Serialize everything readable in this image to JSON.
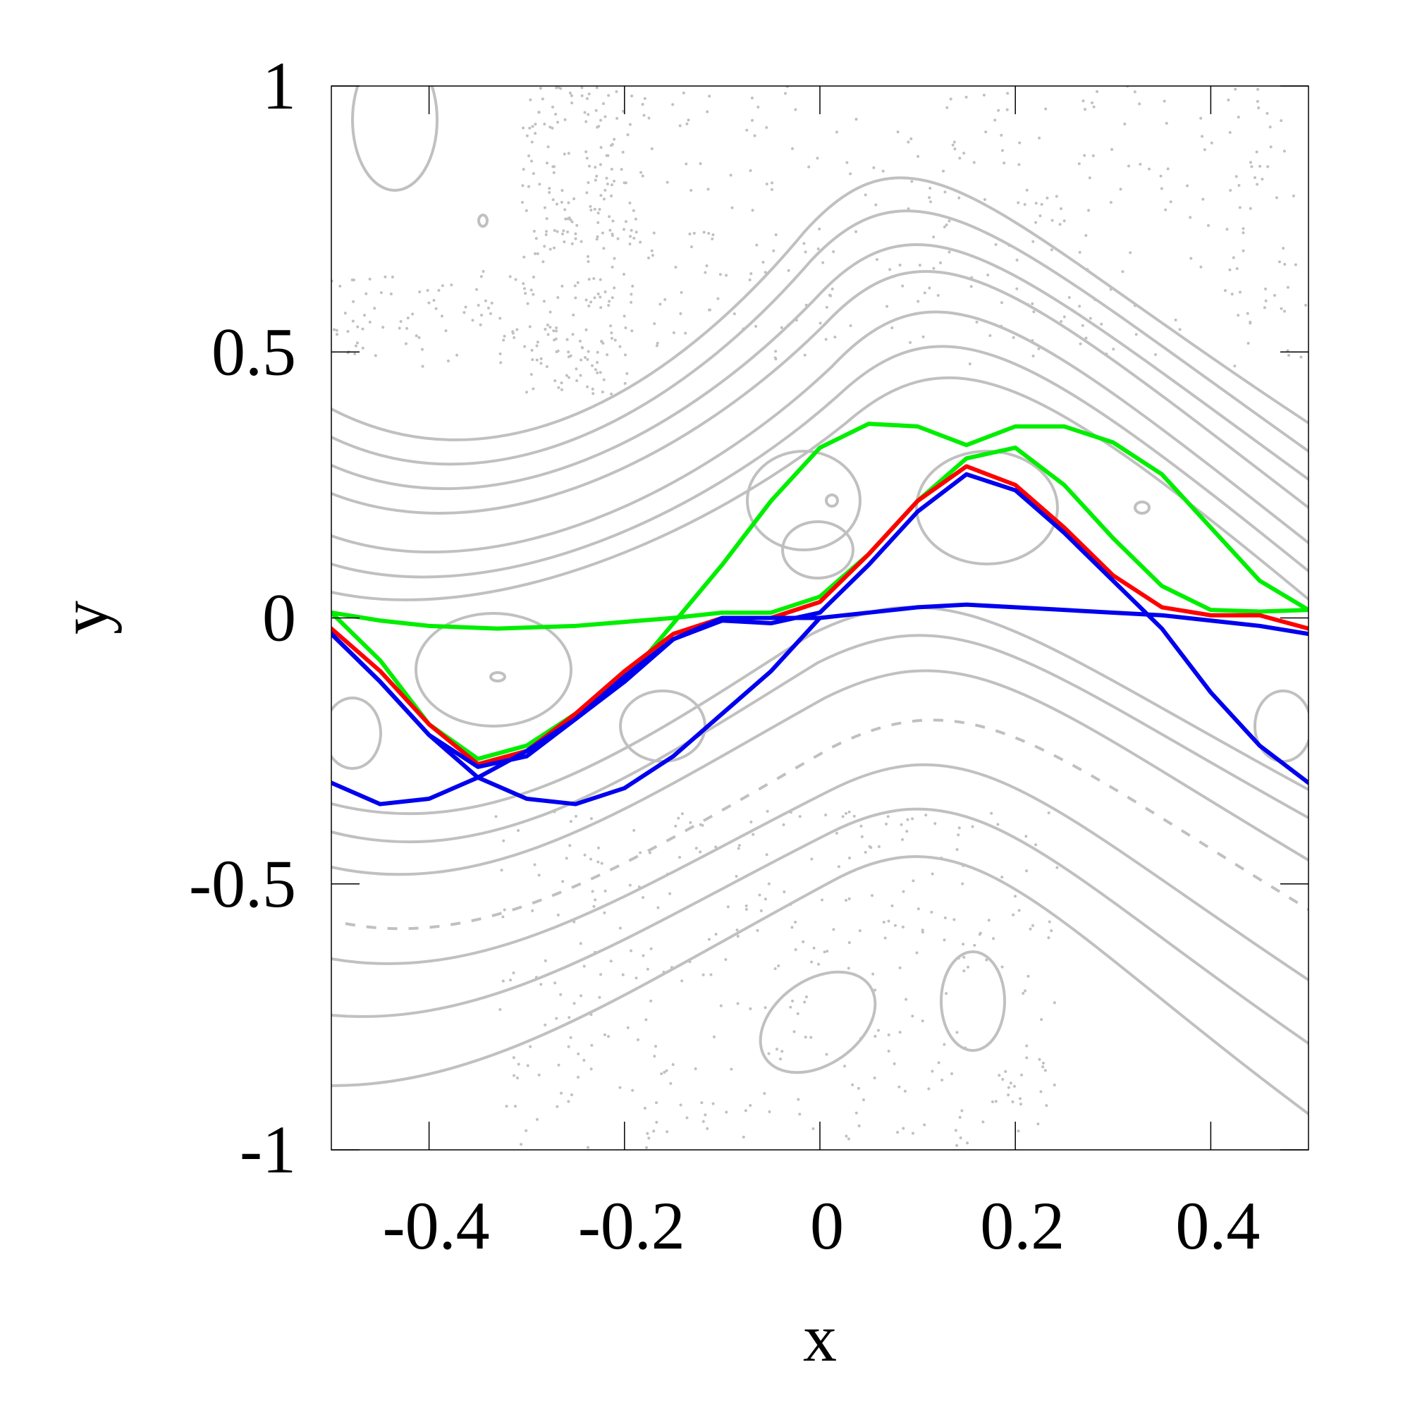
{
  "chart_data": {
    "type": "line",
    "title": "",
    "xlabel": "x",
    "ylabel": "y",
    "xlim": [
      -0.5,
      0.5
    ],
    "ylim": [
      -1,
      1
    ],
    "xticks": [
      "-0.4",
      "-0.2",
      "0",
      "0.2",
      "0.4"
    ],
    "yticks": [
      "1",
      "0.5",
      "0",
      "-0.5",
      "-1"
    ],
    "grid": false,
    "colors": {
      "background_orbits": "#c0c0c0",
      "red": "#ff0000",
      "green": "#00ee00",
      "blue": "#0000ee"
    },
    "series": [
      {
        "color": "#00ee00",
        "segments": [
          [
            [
              -0.5,
              0.01
            ],
            [
              -0.45,
              -0.005
            ],
            [
              -0.4,
              -0.015
            ],
            [
              -0.33,
              -0.02
            ],
            [
              -0.25,
              -0.015
            ],
            [
              -0.15,
              0.0
            ],
            [
              -0.1,
              0.01
            ],
            [
              -0.05,
              0.01
            ],
            [
              0.0,
              0.04
            ],
            [
              0.05,
              0.12
            ],
            [
              0.1,
              0.22
            ],
            [
              0.15,
              0.3
            ],
            [
              0.2,
              0.32
            ],
            [
              0.25,
              0.25
            ],
            [
              0.3,
              0.15
            ],
            [
              0.35,
              0.06
            ],
            [
              0.4,
              0.015
            ],
            [
              0.45,
              0.012
            ],
            [
              0.5,
              0.015
            ]
          ],
          [
            [
              -0.5,
              0.01
            ],
            [
              -0.45,
              -0.08
            ],
            [
              -0.4,
              -0.2
            ],
            [
              -0.35,
              -0.265
            ],
            [
              -0.3,
              -0.24
            ],
            [
              -0.2,
              -0.12
            ],
            [
              -0.15,
              -0.01
            ],
            [
              -0.1,
              0.1
            ],
            [
              -0.05,
              0.22
            ],
            [
              0.0,
              0.32
            ],
            [
              0.05,
              0.365
            ],
            [
              0.1,
              0.36
            ],
            [
              0.15,
              0.325
            ],
            [
              0.2,
              0.36
            ],
            [
              0.25,
              0.36
            ],
            [
              0.3,
              0.33
            ],
            [
              0.35,
              0.27
            ],
            [
              0.4,
              0.17
            ],
            [
              0.45,
              0.07
            ],
            [
              0.5,
              0.015
            ]
          ]
        ]
      },
      {
        "color": "#ff0000",
        "segments": [
          [
            [
              -0.5,
              -0.02
            ],
            [
              -0.45,
              -0.1
            ],
            [
              -0.4,
              -0.2
            ],
            [
              -0.35,
              -0.275
            ],
            [
              -0.3,
              -0.25
            ],
            [
              -0.25,
              -0.18
            ],
            [
              -0.2,
              -0.1
            ],
            [
              -0.15,
              -0.03
            ],
            [
              -0.1,
              0.0
            ],
            [
              -0.05,
              0.0
            ],
            [
              0.0,
              0.03
            ],
            [
              0.05,
              0.12
            ],
            [
              0.1,
              0.22
            ],
            [
              0.15,
              0.285
            ],
            [
              0.2,
              0.25
            ],
            [
              0.25,
              0.17
            ],
            [
              0.3,
              0.08
            ],
            [
              0.35,
              0.02
            ],
            [
              0.4,
              0.005
            ],
            [
              0.45,
              0.005
            ],
            [
              0.5,
              -0.02
            ]
          ]
        ]
      },
      {
        "color": "#0000ee",
        "segments": [
          [
            [
              -0.5,
              -0.03
            ],
            [
              -0.45,
              -0.12
            ],
            [
              -0.4,
              -0.22
            ],
            [
              -0.35,
              -0.28
            ],
            [
              -0.3,
              -0.26
            ],
            [
              -0.25,
              -0.19
            ],
            [
              -0.2,
              -0.11
            ],
            [
              -0.15,
              -0.04
            ],
            [
              -0.1,
              -0.005
            ],
            [
              -0.05,
              -0.01
            ],
            [
              0.0,
              0.01
            ],
            [
              0.05,
              0.1
            ],
            [
              0.1,
              0.2
            ],
            [
              0.15,
              0.27
            ],
            [
              0.2,
              0.24
            ],
            [
              0.25,
              0.16
            ],
            [
              0.3,
              0.07
            ],
            [
              0.35,
              -0.02
            ],
            [
              0.4,
              -0.14
            ],
            [
              0.45,
              -0.24
            ],
            [
              0.5,
              -0.31
            ]
          ],
          [
            [
              -0.5,
              -0.31
            ],
            [
              -0.45,
              -0.35
            ],
            [
              -0.4,
              -0.34
            ],
            [
              -0.35,
              -0.3
            ],
            [
              -0.3,
              -0.25
            ],
            [
              -0.25,
              -0.19
            ],
            [
              -0.2,
              -0.12
            ],
            [
              -0.15,
              -0.04
            ],
            [
              -0.1,
              0.0
            ],
            [
              -0.05,
              0.0
            ],
            [
              0.0,
              0.0
            ],
            [
              0.05,
              0.01
            ],
            [
              0.1,
              0.02
            ],
            [
              0.15,
              0.025
            ],
            [
              0.2,
              0.02
            ],
            [
              0.25,
              0.015
            ],
            [
              0.3,
              0.01
            ],
            [
              0.35,
              0.005
            ],
            [
              0.4,
              -0.005
            ],
            [
              0.45,
              -0.015
            ],
            [
              0.5,
              -0.03
            ]
          ],
          [
            [
              -0.5,
              -0.03
            ],
            [
              -0.45,
              -0.12
            ],
            [
              -0.4,
              -0.22
            ],
            [
              -0.35,
              -0.3
            ],
            [
              -0.3,
              -0.34
            ],
            [
              -0.25,
              -0.35
            ],
            [
              -0.2,
              -0.32
            ],
            [
              -0.15,
              -0.26
            ],
            [
              -0.1,
              -0.18
            ],
            [
              -0.05,
              -0.1
            ],
            [
              0.0,
              0.0
            ]
          ]
        ]
      }
    ]
  }
}
